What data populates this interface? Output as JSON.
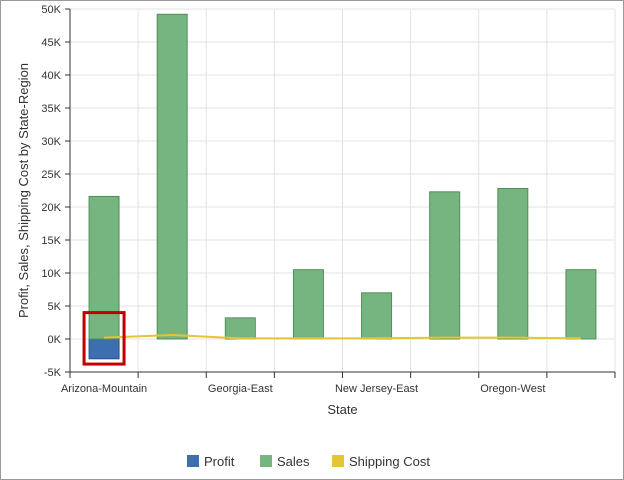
{
  "chart_data": {
    "type": "bar",
    "title": "",
    "xlabel": "State",
    "ylabel": "Profit, Sales, Shipping Cost by State-Region",
    "ylim": [
      -5000,
      50000
    ],
    "yticks": [
      -5000,
      0,
      5000,
      10000,
      15000,
      20000,
      25000,
      30000,
      35000,
      40000,
      45000,
      50000
    ],
    "ytick_labels": [
      "-5K",
      "0K",
      "5K",
      "10K",
      "15K",
      "20K",
      "25K",
      "30K",
      "35K",
      "40K",
      "45K",
      "50K"
    ],
    "category_count": 8,
    "x_tick_labels": [
      {
        "index": 0,
        "label": "Arizona-Mountain"
      },
      {
        "index": 2,
        "label": "Georgia-East"
      },
      {
        "index": 4,
        "label": "New Jersey-East"
      },
      {
        "index": 6,
        "label": "Oregon-West"
      }
    ],
    "grid": true,
    "legend_position": "bottom",
    "series": [
      {
        "name": "Profit",
        "type": "bar",
        "color": "#3d6fb0",
        "values": [
          -3000,
          0,
          0,
          0,
          0,
          0,
          0,
          0
        ]
      },
      {
        "name": "Sales",
        "type": "bar",
        "color": "#77b580",
        "values": [
          21600,
          49200,
          3200,
          10500,
          7000,
          22300,
          22800,
          10500
        ]
      },
      {
        "name": "Shipping Cost",
        "type": "line",
        "color": "#e5c531",
        "values": [
          200,
          600,
          100,
          100,
          100,
          200,
          200,
          100
        ]
      }
    ],
    "highlight": {
      "category_index": 0,
      "color": "#c00000"
    }
  }
}
